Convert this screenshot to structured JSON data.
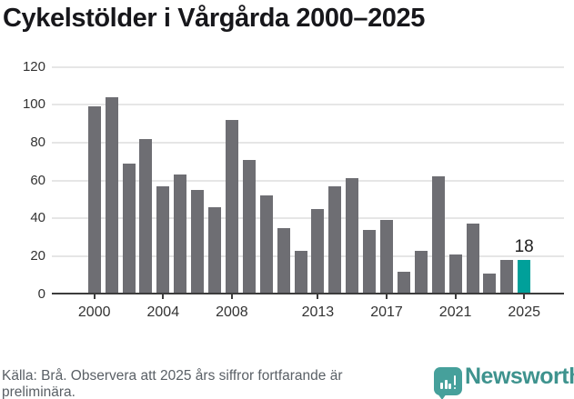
{
  "title": "Cykelstölder i Vårgårda 2000–2025",
  "chart_data": {
    "type": "bar",
    "title": "Cykelstölder i Vårgårda 2000–2025",
    "categories": [
      2000,
      2001,
      2002,
      2003,
      2004,
      2005,
      2006,
      2007,
      2008,
      2009,
      2010,
      2011,
      2012,
      2013,
      2014,
      2015,
      2016,
      2017,
      2018,
      2019,
      2020,
      2021,
      2022,
      2023,
      2024,
      2025
    ],
    "values": [
      99,
      104,
      69,
      82,
      57,
      63,
      55,
      46,
      92,
      71,
      52,
      35,
      23,
      45,
      57,
      61,
      34,
      39,
      12,
      23,
      62,
      21,
      37,
      11,
      18,
      18
    ],
    "highlight_index": 25,
    "highlight_value_label": "18",
    "xlabel": "",
    "ylabel": "",
    "ylim": [
      0,
      120
    ],
    "yticks": [
      0,
      20,
      40,
      60,
      80,
      100,
      120
    ],
    "xtick_years": [
      2000,
      2004,
      2008,
      2013,
      2017,
      2021,
      2025
    ],
    "grid": "horizontal",
    "legend": "none",
    "bar_color": "#6e6e73",
    "highlight_color": "#00a09a"
  },
  "footer": {
    "source_text": "Källa: Brå. Observera att 2025 års siffror fortfarande är preliminära."
  },
  "brand": {
    "name": "Newsworthy",
    "icon": "newsworthy-speech-bubble-chart-icon",
    "icon_color": "#46a09b",
    "text_color": "#3e938e"
  },
  "colors": {
    "grid": "#e6e6e6",
    "axis": "#3c3c3c",
    "tick_label": "#333333",
    "title": "#17171b",
    "footer_text": "#5a6066"
  }
}
